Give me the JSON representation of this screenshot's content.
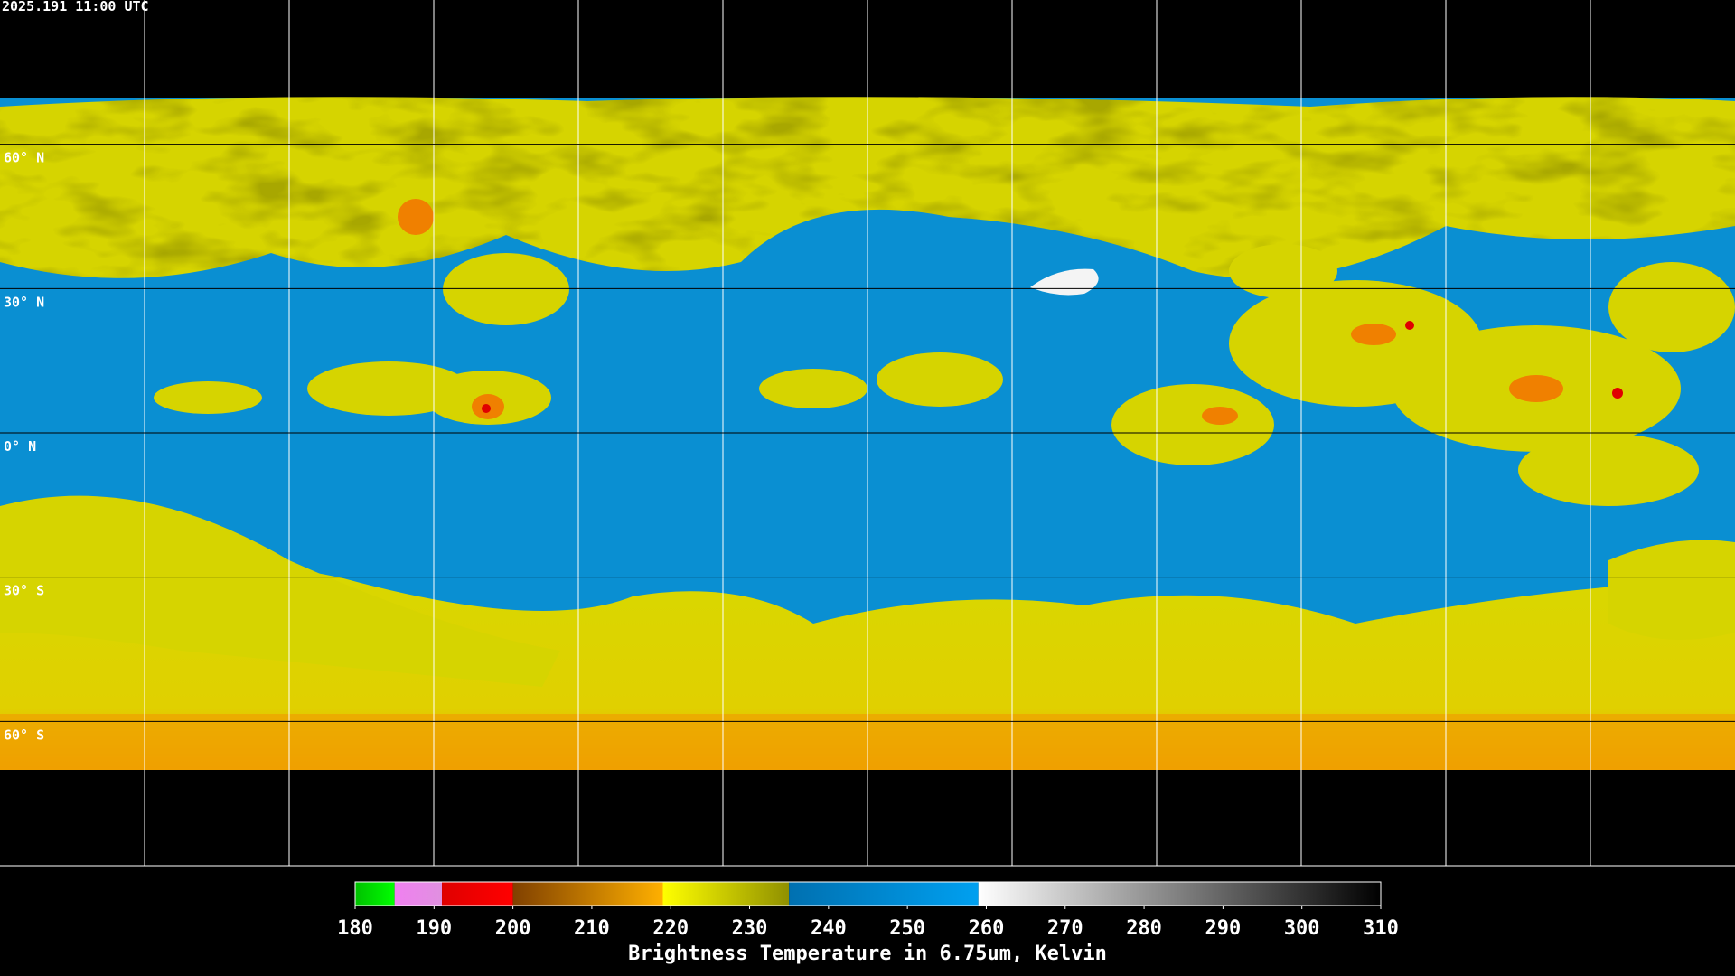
{
  "header": {
    "timestamp": "2025.191 11:00 UTC"
  },
  "map": {
    "lat_labels": [
      {
        "value": 60,
        "label": "60° N"
      },
      {
        "value": 30,
        "label": "30° N"
      },
      {
        "value": 0,
        "label": "0° N"
      },
      {
        "value": -30,
        "label": "30° S"
      },
      {
        "value": -60,
        "label": "60° S"
      }
    ]
  },
  "colorbar": {
    "title": "Brightness Temperature in 6.75um, Kelvin",
    "range": [
      180,
      310
    ],
    "ticks": [
      180,
      190,
      200,
      210,
      220,
      230,
      240,
      250,
      260,
      270,
      280,
      290,
      300,
      310
    ],
    "segments": [
      {
        "from": 180,
        "to": 185,
        "colors": [
          "#00c000",
          "#00ff00"
        ]
      },
      {
        "from": 185,
        "to": 191,
        "colors": [
          "#f080f0",
          "#e090e0"
        ]
      },
      {
        "from": 191,
        "to": 200,
        "colors": [
          "#e00000",
          "#ff0000"
        ]
      },
      {
        "from": 200,
        "to": 219,
        "colors": [
          "#804000",
          "#ffb000"
        ]
      },
      {
        "from": 219,
        "to": 235,
        "colors": [
          "#ffff00",
          "#909000"
        ]
      },
      {
        "from": 235,
        "to": 259,
        "colors": [
          "#0070b0",
          "#00a0f0"
        ]
      },
      {
        "from": 259,
        "to": 310,
        "colors": [
          "#ffffff",
          "#000000"
        ]
      }
    ]
  }
}
